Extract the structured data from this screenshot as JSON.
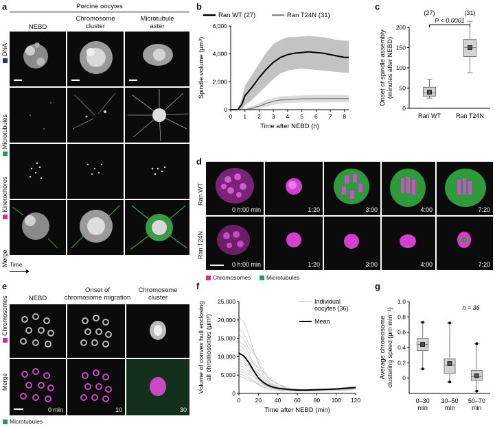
{
  "colors": {
    "dna": "#2b2d8a",
    "microtubules": "#1f9e4f",
    "kinetochores": "#d4318c",
    "chromosome": "#e040d8",
    "mt_green": "#2fa83a"
  },
  "panel_a": {
    "label": "a",
    "title": "Porcine oocytes",
    "columns": [
      "NEBD",
      "Chromosome\ncluster",
      "Microtubule\naster"
    ],
    "rows": [
      "DNA",
      "Microtubules",
      "Kinetochores",
      "Merge"
    ],
    "time_label": "Time"
  },
  "panel_b": {
    "label": "b"
  },
  "panel_c": {
    "label": "c"
  },
  "panel_d": {
    "label": "d",
    "rows": [
      "Ran WT",
      "Ran T24N"
    ],
    "times": [
      "0 h:00 min",
      "1:20",
      "3:00",
      "4:00",
      "7:20"
    ],
    "legend": [
      "Chromosomes",
      "Microtubules"
    ]
  },
  "panel_e": {
    "label": "e",
    "columns": [
      "NEBD",
      "Onset of\nchromosome migration",
      "Chromosome\ncluster"
    ],
    "rows": [
      "Chromosomes",
      "Merge"
    ],
    "times": [
      "0 min",
      "10",
      "30"
    ],
    "legend": "Microtubules"
  },
  "panel_f": {
    "label": "f"
  },
  "panel_g": {
    "label": "g",
    "n_label": "n = 36"
  },
  "chart_data": [
    {
      "type": "line",
      "panel": "b",
      "xlabel": "Time after NEBD (h)",
      "ylabel": "Spindle volume (μm³)",
      "xlim": [
        0,
        8.3
      ],
      "ylim": [
        0,
        6000
      ],
      "xticks": [
        0,
        1,
        2,
        3,
        4,
        5,
        6,
        7,
        8
      ],
      "yticks": [
        "0",
        "2,000",
        "4,000",
        "6,000"
      ],
      "series": [
        {
          "name": "Ran WT (27)",
          "color": "#000000",
          "x": [
            0,
            0.5,
            0.8,
            1,
            1.5,
            2,
            2.5,
            3,
            3.5,
            4,
            4.5,
            5,
            5.5,
            6,
            6.5,
            7,
            7.5,
            8,
            8.3
          ],
          "mean": [
            0,
            0,
            400,
            1000,
            1600,
            2300,
            2900,
            3400,
            3750,
            3950,
            4050,
            4100,
            4150,
            4100,
            4050,
            3950,
            3850,
            3750,
            3750
          ],
          "lower": [
            0,
            0,
            0,
            300,
            700,
            1200,
            1700,
            2200,
            2600,
            2800,
            2900,
            2950,
            2900,
            2850,
            2800,
            2750,
            2700,
            2650,
            2650
          ],
          "upper": [
            0,
            0,
            900,
            1700,
            2500,
            3300,
            4100,
            4700,
            5000,
            5200,
            5200,
            5250,
            5300,
            5250,
            5200,
            5100,
            5000,
            4950,
            4950
          ]
        },
        {
          "name": "Ran T24N (31)",
          "color": "#888888",
          "x": [
            0,
            0.5,
            0.8,
            1,
            1.5,
            2,
            2.5,
            3,
            3.5,
            4,
            4.5,
            5,
            5.5,
            6,
            6.5,
            7,
            7.5,
            8,
            8.3
          ],
          "mean": [
            0,
            0,
            0,
            0,
            100,
            250,
            450,
            600,
            700,
            720,
            750,
            780,
            780,
            790,
            790,
            800,
            800,
            800,
            800
          ],
          "lower": [
            0,
            0,
            0,
            0,
            0,
            80,
            220,
            350,
            450,
            480,
            500,
            520,
            520,
            520,
            520,
            520,
            520,
            520,
            520
          ],
          "upper": [
            0,
            0,
            0,
            0,
            250,
            450,
            700,
            850,
            950,
            980,
            1000,
            1020,
            1030,
            1050,
            1050,
            1050,
            1050,
            1050,
            1050
          ]
        }
      ]
    },
    {
      "type": "box",
      "panel": "c",
      "ylabel": "Onset of spindle assembly\n(minutes after NEBD)",
      "ylim": [
        0,
        200
      ],
      "yticks": [
        0,
        50,
        100,
        150,
        200
      ],
      "annotation": "P < 0.0001",
      "categories": [
        "Ran WT",
        "Ran T24N"
      ],
      "counts": [
        "(27)",
        "(31)"
      ],
      "boxes": [
        {
          "min": 25,
          "q1": 30,
          "median": 38,
          "q3": 52,
          "max": 72,
          "mean": 40
        },
        {
          "min": 88,
          "q1": 128,
          "median": 150,
          "q3": 170,
          "max": 215,
          "mean": 150
        }
      ]
    },
    {
      "type": "line",
      "panel": "f",
      "xlabel": "Time after NEBD (min)",
      "ylabel": "Volume of convex hull enclosing\nall chromosomes (μm³)",
      "xlim": [
        0,
        120
      ],
      "ylim": [
        0,
        25000
      ],
      "xticks": [
        0,
        20,
        40,
        60,
        80,
        100,
        120
      ],
      "yticks": [
        "0",
        "5,000",
        "10,000",
        "15,000",
        "20,000",
        "25,000"
      ],
      "legend": [
        "Individual\noocytes (36)",
        "Mean"
      ],
      "series": [
        {
          "name": "Mean",
          "color": "#000000",
          "x": [
            0,
            5,
            10,
            15,
            20,
            25,
            30,
            35,
            40,
            50,
            60,
            70,
            80,
            90,
            100,
            110,
            120
          ],
          "values": [
            11000,
            10200,
            8500,
            6200,
            4200,
            3000,
            2200,
            1700,
            1400,
            1100,
            900,
            900,
            1000,
            1100,
            1200,
            1400,
            1600
          ]
        }
      ]
    },
    {
      "type": "box",
      "panel": "g",
      "ylabel": "Average chromosome\nclustering speed (μm min⁻¹)",
      "ylim": [
        -0.2,
        1.0
      ],
      "yticks": [
        "0",
        "0.2",
        "0.4",
        "0.6",
        "0.8",
        "1.0"
      ],
      "categories": [
        "0–30\nmin",
        "30–50\nmin",
        "50–70\nmin"
      ],
      "boxes": [
        {
          "min": 0.12,
          "q1": 0.36,
          "median": 0.44,
          "q3": 0.52,
          "max": 0.73,
          "mean": 0.44
        },
        {
          "min": -0.05,
          "q1": 0.06,
          "median": 0.17,
          "q3": 0.25,
          "max": 0.72,
          "mean": 0.19
        },
        {
          "min": -0.17,
          "q1": -0.03,
          "median": 0.02,
          "q3": 0.1,
          "max": 0.45,
          "mean": 0.03
        }
      ]
    }
  ]
}
